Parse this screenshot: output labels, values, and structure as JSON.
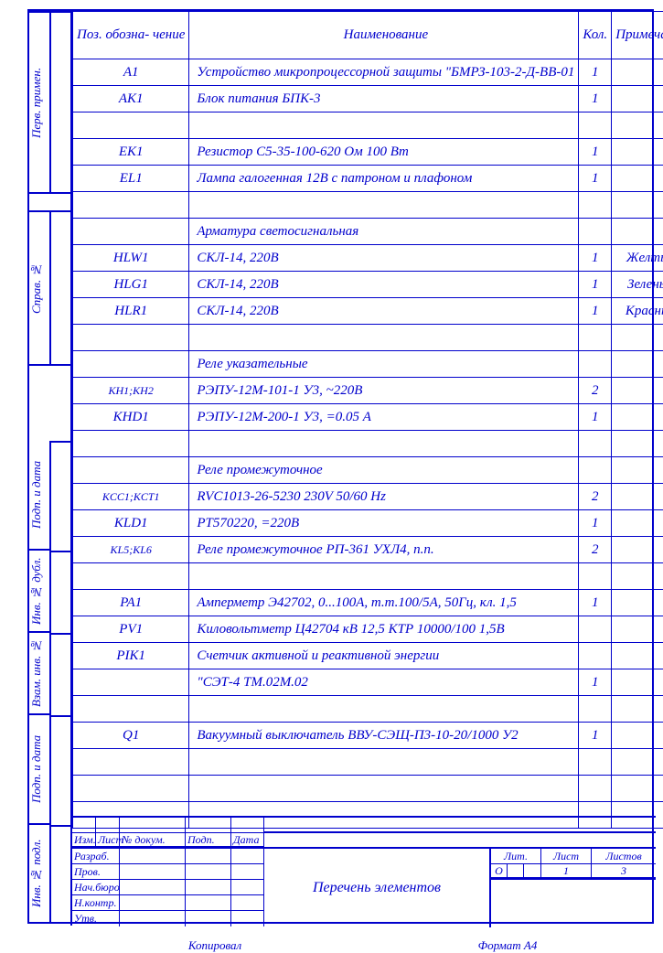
{
  "headers": {
    "poz": "Поз. обозна- чение",
    "naim": "Наименование",
    "kol": "Кол.",
    "prim": "Примечание"
  },
  "rows": [
    {
      "poz": "A1",
      "naim": "Устройство микропроцессорной защиты \"БМРЗ-103-2-Д-ВВ-01",
      "kol": "1",
      "prim": ""
    },
    {
      "poz": "AK1",
      "naim": "Блок питания БПК-3",
      "kol": "1",
      "prim": ""
    },
    {
      "poz": "",
      "naim": "",
      "kol": "",
      "prim": ""
    },
    {
      "poz": "EK1",
      "naim": "Резистор  С5-35-100-620 Ом 100 Вт",
      "kol": "1",
      "prim": ""
    },
    {
      "poz": "EL1",
      "naim": "  Лампа галогенная 12В с патроном и плафоном",
      "kol": "1",
      "prim": ""
    },
    {
      "poz": "",
      "naim": "",
      "kol": "",
      "prim": ""
    },
    {
      "poz": "",
      "naim": "Арматура светосигнальная",
      "kol": "",
      "prim": ""
    },
    {
      "poz": "HLW1",
      "naim": " СКЛ-14,  220В",
      "kol": "1",
      "prim": "Желтый"
    },
    {
      "poz": "HLG1",
      "naim": " СКЛ-14,  220В",
      "kol": "1",
      "prim": "Зеленый"
    },
    {
      "poz": "HLR1",
      "naim": " СКЛ-14,  220В",
      "kol": "1",
      "prim": "Красный"
    },
    {
      "poz": "",
      "naim": "",
      "kol": "",
      "prim": ""
    },
    {
      "poz": "",
      "naim": "Реле указательные",
      "kol": "",
      "prim": ""
    },
    {
      "poz": "KH1;KH2",
      "naim": " РЭПУ-12М-101-1 У3,   ~220В",
      "kol": "2",
      "prim": ""
    },
    {
      "poz": "KHD1",
      "naim": " РЭПУ-12М-200-1 У3,   =0.05 А",
      "kol": "1",
      "prim": ""
    },
    {
      "poz": "",
      "naim": "",
      "kol": "",
      "prim": ""
    },
    {
      "poz": "",
      "naim": "Реле промежуточное",
      "kol": "",
      "prim": ""
    },
    {
      "poz": "KCC1;KCT1",
      "naim": "RVC1013-26-5230 230V 50/60 Hz",
      "kol": "2",
      "prim": ""
    },
    {
      "poz": "KLD1",
      "naim": "РТ570220, =220В",
      "kol": "1",
      "prim": ""
    },
    {
      "poz": "KL5;KL6",
      "naim": "Реле промежуточное  РП-361 УХЛ4, п.п.",
      "kol": "2",
      "prim": ""
    },
    {
      "poz": "",
      "naim": "",
      "kol": "",
      "prim": ""
    },
    {
      "poz": "PA1",
      "naim": " Амперметр Э42702, 0...100А, т.т.100/5А, 50Гц, кл. 1,5",
      "kol": "1",
      "prim": ""
    },
    {
      "poz": "PV1",
      "naim": "Киловольтметр Ц42704 кВ 12,5 КТР 10000/100 1,5В",
      "kol": "",
      "prim": ""
    },
    {
      "poz": "PIK1",
      "naim": "  Счетчик активной и реактивной энергии",
      "kol": "",
      "prim": ""
    },
    {
      "poz": "",
      "naim": " \"СЭТ-4 ТМ.02М.02",
      "kol": "1",
      "prim": ""
    },
    {
      "poz": "",
      "naim": "",
      "kol": "",
      "prim": ""
    },
    {
      "poz": "Q1",
      "naim": "Вакуумный выключатель ВВУ-СЭЩ-П3-10-20/1000 У2",
      "kol": "1",
      "prim": ""
    },
    {
      "poz": "",
      "naim": "",
      "kol": "",
      "prim": ""
    },
    {
      "poz": "",
      "naim": "",
      "kol": "",
      "prim": ""
    },
    {
      "poz": "",
      "naim": "",
      "kol": "",
      "prim": ""
    }
  ],
  "side_labels": {
    "perv": "Перв. примен.",
    "sprav": "Справ. №",
    "podp1": "Подп. и дата",
    "inv_dubl": "Инв. № дубл.",
    "vzam": "Взам. инв. №",
    "podp2": "Подп. и дата",
    "inv_podl": "Инв. № подл."
  },
  "title_block": {
    "cols": [
      "Изм.",
      "Лист",
      "№ докум.",
      "Подп.",
      "Дата"
    ],
    "rows_left": [
      "Разраб.",
      "Пров.",
      "Нач.бюро",
      "Н.контр.",
      "Утв."
    ],
    "center": "Перечень элементов",
    "lit": "Лит.",
    "list": "Лист",
    "listov": "Листов",
    "list_val": "1",
    "listov_val": "3",
    "lit_val": "О"
  },
  "footer": {
    "kopiroval": "Копировал",
    "format": "Формат     А4"
  },
  "colors": {
    "line": "#0000cc",
    "bg": "#ffffff"
  }
}
